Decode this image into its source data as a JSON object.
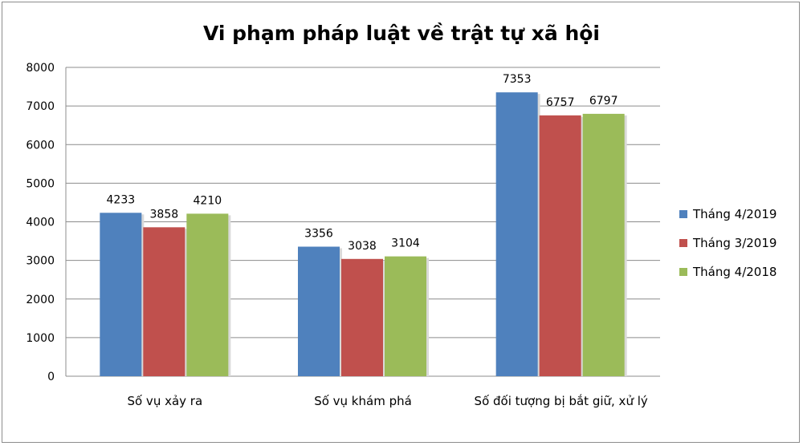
{
  "chart_data": {
    "type": "bar",
    "title": "Vi phạm pháp luật về trật tự xã hội",
    "categories": [
      "Số vụ xảy ra",
      "Số vụ khám phá",
      "Số đối tượng bị bắt giữ, xử lý"
    ],
    "series": [
      {
        "name": "Tháng 4/2019",
        "color": "#4f81bd",
        "values": [
          4233,
          3356,
          7353
        ]
      },
      {
        "name": "Tháng 3/2019",
        "color": "#c0504d",
        "values": [
          3858,
          3038,
          6757
        ]
      },
      {
        "name": "Tháng 4/2018",
        "color": "#9bbb59",
        "values": [
          4210,
          3104,
          6797
        ]
      }
    ],
    "yticks": [
      "0",
      "1000",
      "2000",
      "3000",
      "4000",
      "5000",
      "6000",
      "7000",
      "8000"
    ],
    "ylim": [
      0,
      8000
    ],
    "grid": true,
    "legend": "right"
  }
}
